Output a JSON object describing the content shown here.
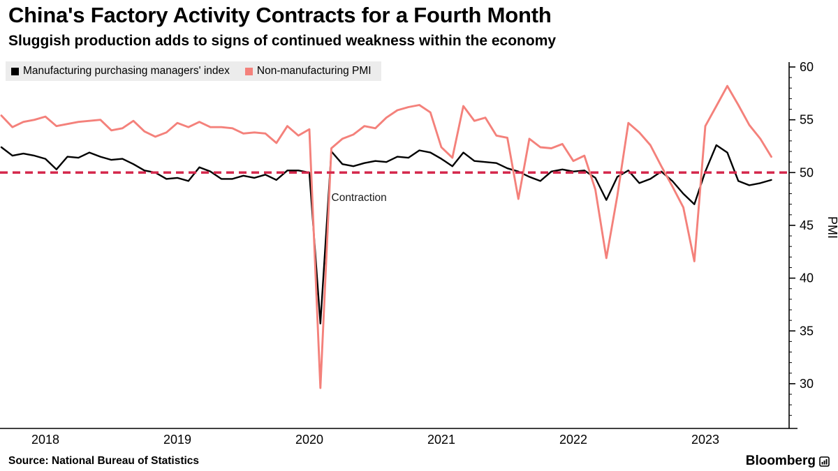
{
  "header": {
    "title": "China's Factory Activity Contracts for a Fourth Month",
    "subtitle": "Sluggish production adds to signs of continued weakness within the economy"
  },
  "legend": {
    "items": [
      {
        "label": "Manufacturing purchasing managers' index",
        "color": "#000000"
      },
      {
        "label": "Non-manufacturing PMI",
        "color": "#f4817b"
      }
    ]
  },
  "chart_data": {
    "type": "line",
    "title": "China's Factory Activity Contracts for a Fourth Month",
    "subtitle": "Sluggish production adds to signs of continued weakness within the economy",
    "ylabel": "PMI",
    "ylim": [
      25.5,
      60.5
    ],
    "yticks": [
      30,
      35,
      40,
      45,
      50,
      55,
      60
    ],
    "grid": false,
    "legend_position": "top-left",
    "x_start": "2017-09",
    "x_end": "2023-07",
    "x_frequency": "monthly",
    "year_ticks": [
      {
        "label": "2018",
        "month_index": 4
      },
      {
        "label": "2019",
        "month_index": 16
      },
      {
        "label": "2020",
        "month_index": 28
      },
      {
        "label": "2021",
        "month_index": 40
      },
      {
        "label": "2022",
        "month_index": 52
      },
      {
        "label": "2023",
        "month_index": 64
      }
    ],
    "threshold_line": {
      "value": 50,
      "color": "#d5294d",
      "style": "dashed"
    },
    "annotation": {
      "text": "Contraction",
      "month_index": 30,
      "value": 47.3
    },
    "series": [
      {
        "name": "Manufacturing purchasing managers' index",
        "color": "#000000",
        "values": [
          52.4,
          51.6,
          51.8,
          51.6,
          51.3,
          50.3,
          51.5,
          51.4,
          51.9,
          51.5,
          51.2,
          51.3,
          50.8,
          50.2,
          50.0,
          49.4,
          49.5,
          49.2,
          50.5,
          50.1,
          49.4,
          49.4,
          49.7,
          49.5,
          49.8,
          49.3,
          50.2,
          50.2,
          50.0,
          35.7,
          52.0,
          50.8,
          50.6,
          50.9,
          51.1,
          51.0,
          51.5,
          51.4,
          52.1,
          51.9,
          51.3,
          50.6,
          51.9,
          51.1,
          51.0,
          50.9,
          50.4,
          50.1,
          49.6,
          49.2,
          50.1,
          50.3,
          50.1,
          50.2,
          49.5,
          47.4,
          49.6,
          50.2,
          49.0,
          49.4,
          50.1,
          49.2,
          48.0,
          47.0,
          50.1,
          52.6,
          51.9,
          49.2,
          48.8,
          49.0,
          49.3
        ]
      },
      {
        "name": "Non-manufacturing PMI",
        "color": "#f4817b",
        "values": [
          55.4,
          54.3,
          54.8,
          55.0,
          55.3,
          54.4,
          54.6,
          54.8,
          54.9,
          55.0,
          54.0,
          54.2,
          54.9,
          53.9,
          53.4,
          53.8,
          54.7,
          54.3,
          54.8,
          54.3,
          54.3,
          54.2,
          53.7,
          53.8,
          53.7,
          52.8,
          54.4,
          53.5,
          54.1,
          29.6,
          52.3,
          53.2,
          53.6,
          54.4,
          54.2,
          55.2,
          55.9,
          56.2,
          56.4,
          55.7,
          52.4,
          51.4,
          56.3,
          54.9,
          55.2,
          53.5,
          53.3,
          47.5,
          53.2,
          52.4,
          52.3,
          52.7,
          51.1,
          51.6,
          48.4,
          41.9,
          47.8,
          54.7,
          53.8,
          52.6,
          50.6,
          48.7,
          46.7,
          41.6,
          54.4,
          56.3,
          58.2,
          56.4,
          54.5,
          53.2,
          51.5
        ]
      }
    ]
  },
  "footer": {
    "source": "Source: National Bureau of Statistics",
    "brand": "Bloomberg"
  }
}
